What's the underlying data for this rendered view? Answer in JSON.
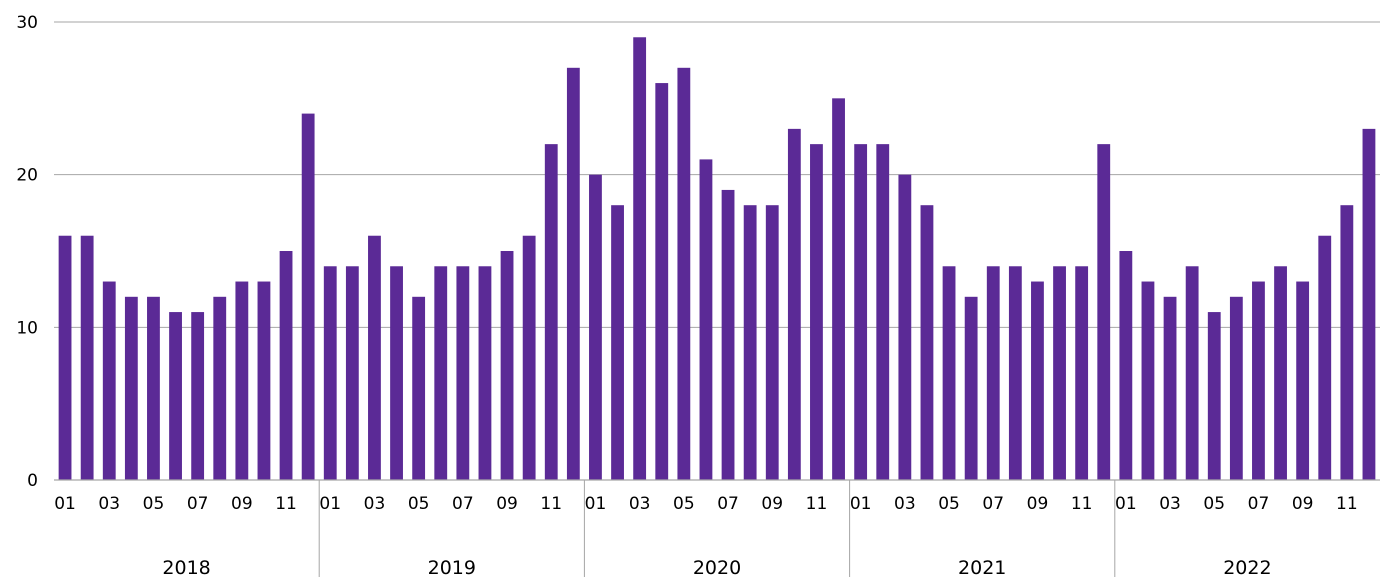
{
  "chart_data": {
    "type": "bar",
    "title": "",
    "xlabel": "",
    "ylabel": "",
    "ylim": [
      0,
      30
    ],
    "yticks": [
      0,
      10,
      20,
      30
    ],
    "grid": true,
    "bar_color": "#5b2a96",
    "grid_color": "#a6a6a6",
    "month_tick_labels": [
      "01",
      "03",
      "05",
      "07",
      "09",
      "11"
    ],
    "groups": [
      {
        "year": "2018",
        "values": [
          16,
          16,
          13,
          12,
          12,
          11,
          11,
          12,
          13,
          13,
          15,
          24
        ]
      },
      {
        "year": "2019",
        "values": [
          14,
          14,
          16,
          14,
          12,
          14,
          14,
          14,
          15,
          16,
          22,
          27
        ]
      },
      {
        "year": "2020",
        "values": [
          20,
          18,
          29,
          26,
          27,
          21,
          19,
          18,
          18,
          23,
          22,
          25
        ]
      },
      {
        "year": "2021",
        "values": [
          22,
          22,
          20,
          18,
          14,
          12,
          14,
          14,
          13,
          14,
          14,
          22
        ]
      },
      {
        "year": "2022",
        "values": [
          15,
          13,
          12,
          14,
          11,
          12,
          13,
          14,
          13,
          16,
          18,
          23
        ]
      }
    ]
  }
}
